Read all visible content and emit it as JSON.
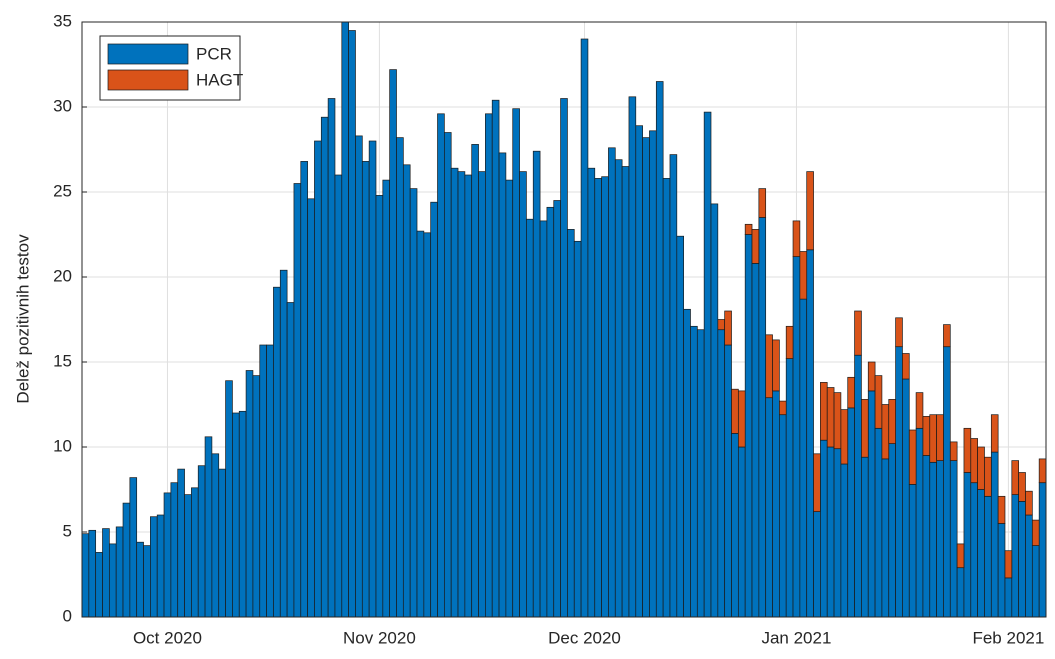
{
  "chart_data": {
    "type": "stacked_bar",
    "ylabel": "Delež pozitivnih testov",
    "categories": [
      null,
      null,
      null,
      null,
      null,
      null,
      null,
      null,
      null,
      null,
      null,
      null,
      "Oct 2020",
      null,
      null,
      null,
      null,
      null,
      null,
      null,
      null,
      null,
      null,
      null,
      null,
      null,
      null,
      null,
      null,
      null,
      null,
      null,
      null,
      null,
      null,
      null,
      null,
      null,
      null,
      null,
      null,
      null,
      null,
      "Nov 2020",
      null,
      null,
      null,
      null,
      null,
      null,
      null,
      null,
      null,
      null,
      null,
      null,
      null,
      null,
      null,
      null,
      null,
      null,
      null,
      null,
      null,
      null,
      null,
      null,
      null,
      null,
      null,
      null,
      null,
      "Dec 2020",
      null,
      null,
      null,
      null,
      null,
      null,
      null,
      null,
      null,
      null,
      null,
      null,
      null,
      null,
      null,
      null,
      null,
      null,
      null,
      null,
      null,
      null,
      null,
      null,
      null,
      null,
      null,
      null,
      null,
      null,
      "Jan 2021",
      null,
      null,
      null,
      null,
      null,
      null,
      null,
      null,
      null,
      null,
      null,
      null,
      null,
      null,
      null,
      null,
      null,
      null,
      null,
      null,
      null,
      null,
      null,
      null,
      null,
      null,
      null,
      null,
      null,
      null,
      "Feb 2021",
      null,
      null,
      null,
      null,
      null
    ],
    "series": [
      {
        "name": "PCR",
        "color": "#0072bd",
        "values": [
          4.9,
          5.1,
          3.8,
          5.2,
          4.3,
          5.3,
          6.7,
          8.2,
          4.4,
          4.2,
          5.9,
          6.0,
          7.3,
          7.9,
          8.7,
          7.2,
          7.6,
          8.9,
          10.6,
          9.6,
          8.7,
          13.9,
          12.0,
          12.1,
          14.5,
          14.2,
          16.0,
          16.0,
          19.4,
          20.4,
          18.5,
          25.5,
          26.8,
          24.6,
          28.0,
          29.4,
          30.5,
          26.0,
          35.0,
          34.5,
          28.3,
          26.8,
          28.0,
          24.8,
          25.7,
          32.2,
          28.2,
          26.6,
          25.2,
          22.7,
          22.6,
          24.4,
          29.6,
          28.5,
          26.4,
          26.2,
          26.0,
          27.8,
          26.2,
          29.6,
          30.4,
          27.3,
          25.7,
          29.9,
          26.2,
          23.4,
          27.4,
          23.3,
          24.1,
          24.5,
          30.5,
          22.8,
          22.1,
          34.0,
          26.4,
          25.8,
          25.9,
          27.6,
          26.9,
          26.5,
          30.6,
          28.9,
          28.2,
          28.6,
          31.5,
          25.8,
          27.2,
          22.4,
          18.1,
          17.1,
          16.9,
          29.7,
          24.3,
          16.9,
          16.0,
          10.8,
          10.0,
          22.5,
          20.8,
          23.5,
          12.9,
          13.3,
          11.9,
          15.2,
          21.2,
          18.7,
          21.6,
          6.2,
          10.4,
          10.0,
          9.9,
          9.0,
          12.3,
          15.4,
          9.4,
          13.3,
          11.1,
          9.3,
          10.2,
          15.9,
          14.0,
          7.8,
          11.1,
          9.5,
          9.1,
          9.2,
          15.9,
          9.2,
          2.9,
          8.5,
          7.9,
          7.5,
          7.1,
          9.7,
          5.5,
          2.3,
          7.2,
          6.8,
          6.0,
          4.2,
          7.9
        ]
      },
      {
        "name": "HAGT",
        "color": "#d95319",
        "values": [
          0,
          0,
          0,
          0,
          0,
          0,
          0,
          0,
          0,
          0,
          0,
          0,
          0,
          0,
          0,
          0,
          0,
          0,
          0,
          0,
          0,
          0,
          0,
          0,
          0,
          0,
          0,
          0,
          0,
          0,
          0,
          0,
          0,
          0,
          0,
          0,
          0,
          0,
          0,
          0,
          0,
          0,
          0,
          0,
          0,
          0,
          0,
          0,
          0,
          0,
          0,
          0,
          0,
          0,
          0,
          0,
          0,
          0,
          0,
          0,
          0,
          0,
          0,
          0,
          0,
          0,
          0,
          0,
          0,
          0,
          0,
          0,
          0,
          0,
          0,
          0,
          0,
          0,
          0,
          0,
          0,
          0,
          0,
          0,
          0,
          0,
          0,
          0,
          0,
          0,
          0,
          0,
          0,
          0.6,
          2.0,
          2.6,
          3.3,
          0.6,
          2.0,
          1.7,
          3.7,
          3.0,
          0.8,
          1.9,
          2.1,
          2.8,
          4.6,
          3.4,
          3.4,
          3.5,
          3.3,
          3.2,
          1.8,
          2.6,
          3.4,
          1.7,
          3.1,
          3.2,
          2.6,
          1.7,
          1.5,
          3.2,
          2.1,
          2.3,
          2.8,
          2.7,
          1.3,
          1.1,
          1.4,
          2.6,
          2.6,
          2.5,
          2.3,
          2.2,
          1.6,
          1.6,
          2.0,
          1.7,
          1.4,
          1.5,
          1.4
        ]
      }
    ],
    "ylim": [
      0,
      35
    ],
    "yticks": [
      0,
      5,
      10,
      15,
      20,
      25,
      30,
      35
    ],
    "grid": true,
    "legend": "top-left"
  }
}
